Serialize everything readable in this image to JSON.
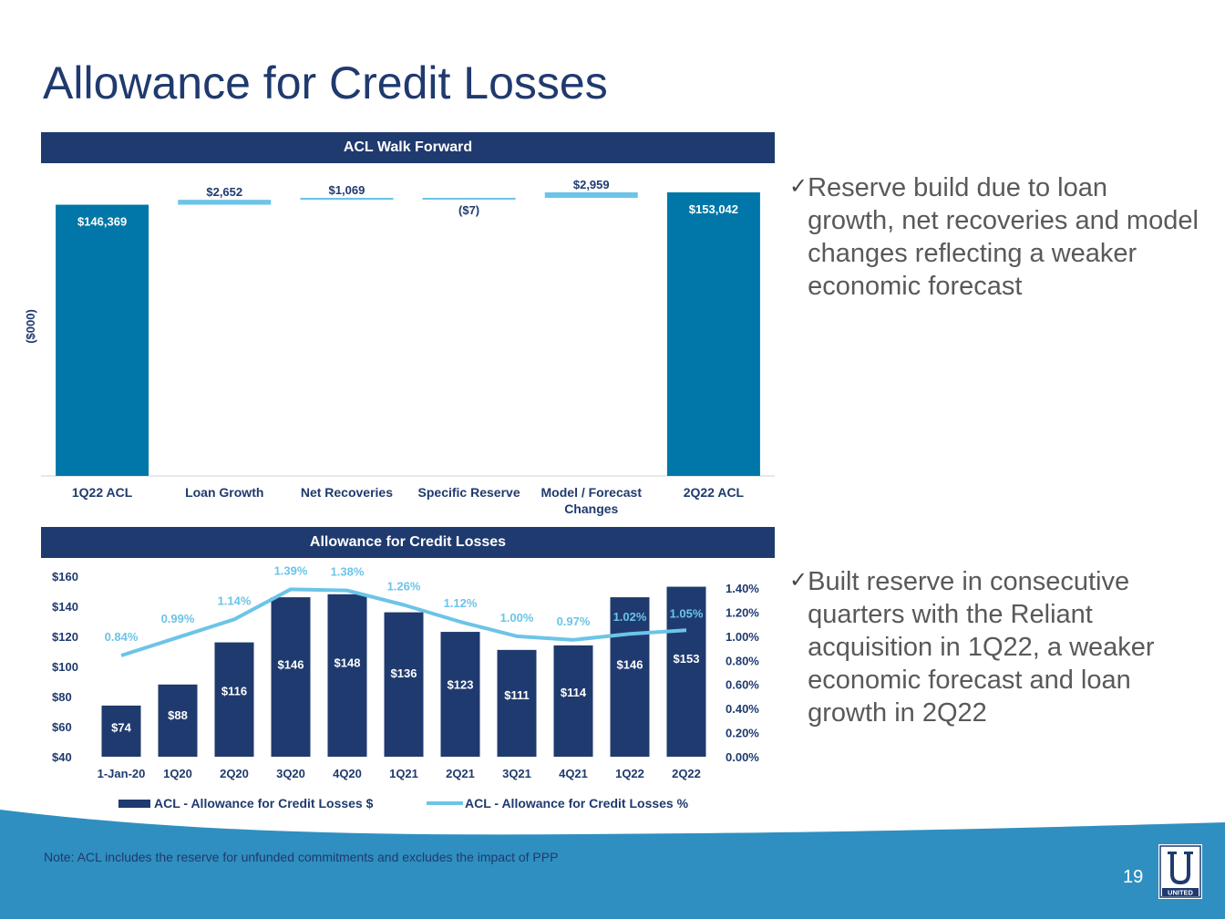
{
  "slide": {
    "title": "Allowance for Credit Losses",
    "note": "Note: ACL includes the reserve for unfunded commitments and excludes the impact of PPP",
    "page_number": "19",
    "logo_text": "UNITED"
  },
  "colors": {
    "navy": "#1f3a6e",
    "teal": "#0077a8",
    "light_blue": "#6cc4e8",
    "footer": "#2f8fc0"
  },
  "bullets": [
    {
      "icon": "check-icon",
      "text": "Reserve build due to loan growth, net recoveries and model changes reflecting a weaker economic forecast"
    },
    {
      "icon": "check-icon",
      "text": "Built reserve in consecutive quarters with the Reliant acquisition in 1Q22, a weaker economic forecast and loan growth in 2Q22"
    }
  ],
  "chart_data": [
    {
      "type": "bar",
      "subtype": "waterfall",
      "title": "ACL Walk Forward",
      "ylabel": "($000)",
      "categories": [
        "1Q22 ACL",
        "Loan Growth",
        "Net Recoveries",
        "Specific Reserve",
        "Model / Forecast Changes",
        "2Q22 ACL"
      ],
      "values": [
        146369,
        2652,
        1069,
        -7,
        2959,
        153042
      ],
      "labels": [
        "$146,369",
        "$2,652",
        "$1,069",
        "($7)",
        "$2,959",
        "$153,042"
      ],
      "totals": [
        true,
        false,
        false,
        false,
        false,
        true
      ],
      "ylim": [
        0,
        155000
      ]
    },
    {
      "type": "bar",
      "title": "Allowance for Credit Losses",
      "categories": [
        "1-Jan-20",
        "1Q20",
        "2Q20",
        "3Q20",
        "4Q20",
        "1Q21",
        "2Q21",
        "3Q21",
        "4Q21",
        "1Q22",
        "2Q22"
      ],
      "series": [
        {
          "name": "ACL - Allowance for Credit Losses $",
          "type": "bar",
          "axis": "left",
          "values": [
            74,
            88,
            116,
            146,
            148,
            136,
            123,
            111,
            114,
            146,
            153
          ],
          "labels": [
            "$74",
            "$88",
            "$116",
            "$146",
            "$148",
            "$136",
            "$123",
            "$111",
            "$114",
            "$146",
            "$153"
          ]
        },
        {
          "name": "ACL - Allowance for Credit Losses %",
          "type": "line",
          "axis": "right",
          "values": [
            0.84,
            0.99,
            1.14,
            1.39,
            1.38,
            1.26,
            1.12,
            1.0,
            0.97,
            1.02,
            1.05
          ],
          "labels": [
            "0.84%",
            "0.99%",
            "1.14%",
            "1.39%",
            "1.38%",
            "1.26%",
            "1.12%",
            "1.00%",
            "0.97%",
            "1.02%",
            "1.05%"
          ]
        }
      ],
      "ylim": [
        40,
        160
      ],
      "yticks": [
        "$40",
        "$60",
        "$80",
        "$100",
        "$120",
        "$140",
        "$160"
      ],
      "y2lim": [
        0,
        1.4
      ],
      "y2ticks": [
        "0.00%",
        "0.20%",
        "0.40%",
        "0.60%",
        "0.80%",
        "1.00%",
        "1.20%",
        "1.40%"
      ],
      "legend": "bottom"
    }
  ]
}
